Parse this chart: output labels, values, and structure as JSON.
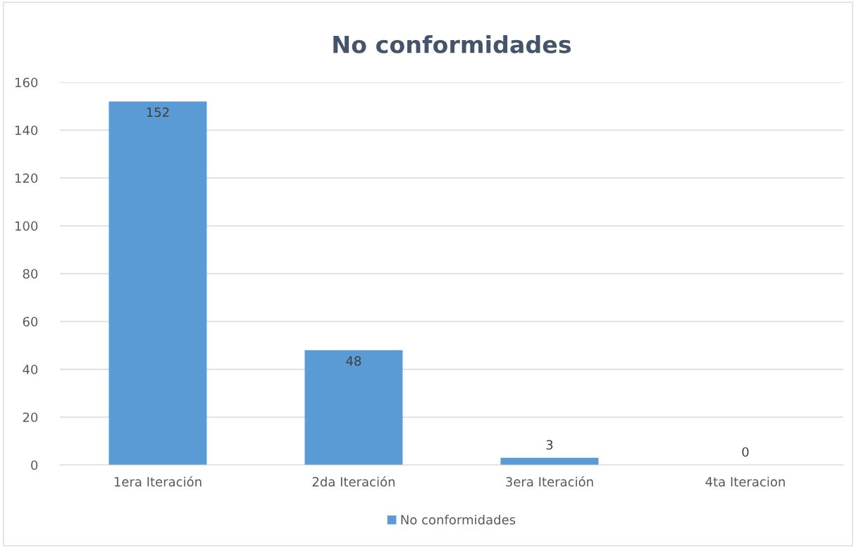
{
  "chart_data": {
    "type": "bar",
    "title": "No conformidades",
    "categories": [
      "1era Iteración",
      "2da Iteración",
      "3era Iteración",
      "4ta Iteracion"
    ],
    "series": [
      {
        "name": "No conformidades",
        "color": "#5b9bd5",
        "values": [
          152,
          48,
          3,
          0
        ]
      }
    ],
    "ylim": [
      0,
      160
    ],
    "yticks": [
      0,
      20,
      40,
      60,
      80,
      100,
      120,
      140,
      160
    ],
    "grid": "y",
    "legend": "bottom",
    "data_labels": true
  }
}
